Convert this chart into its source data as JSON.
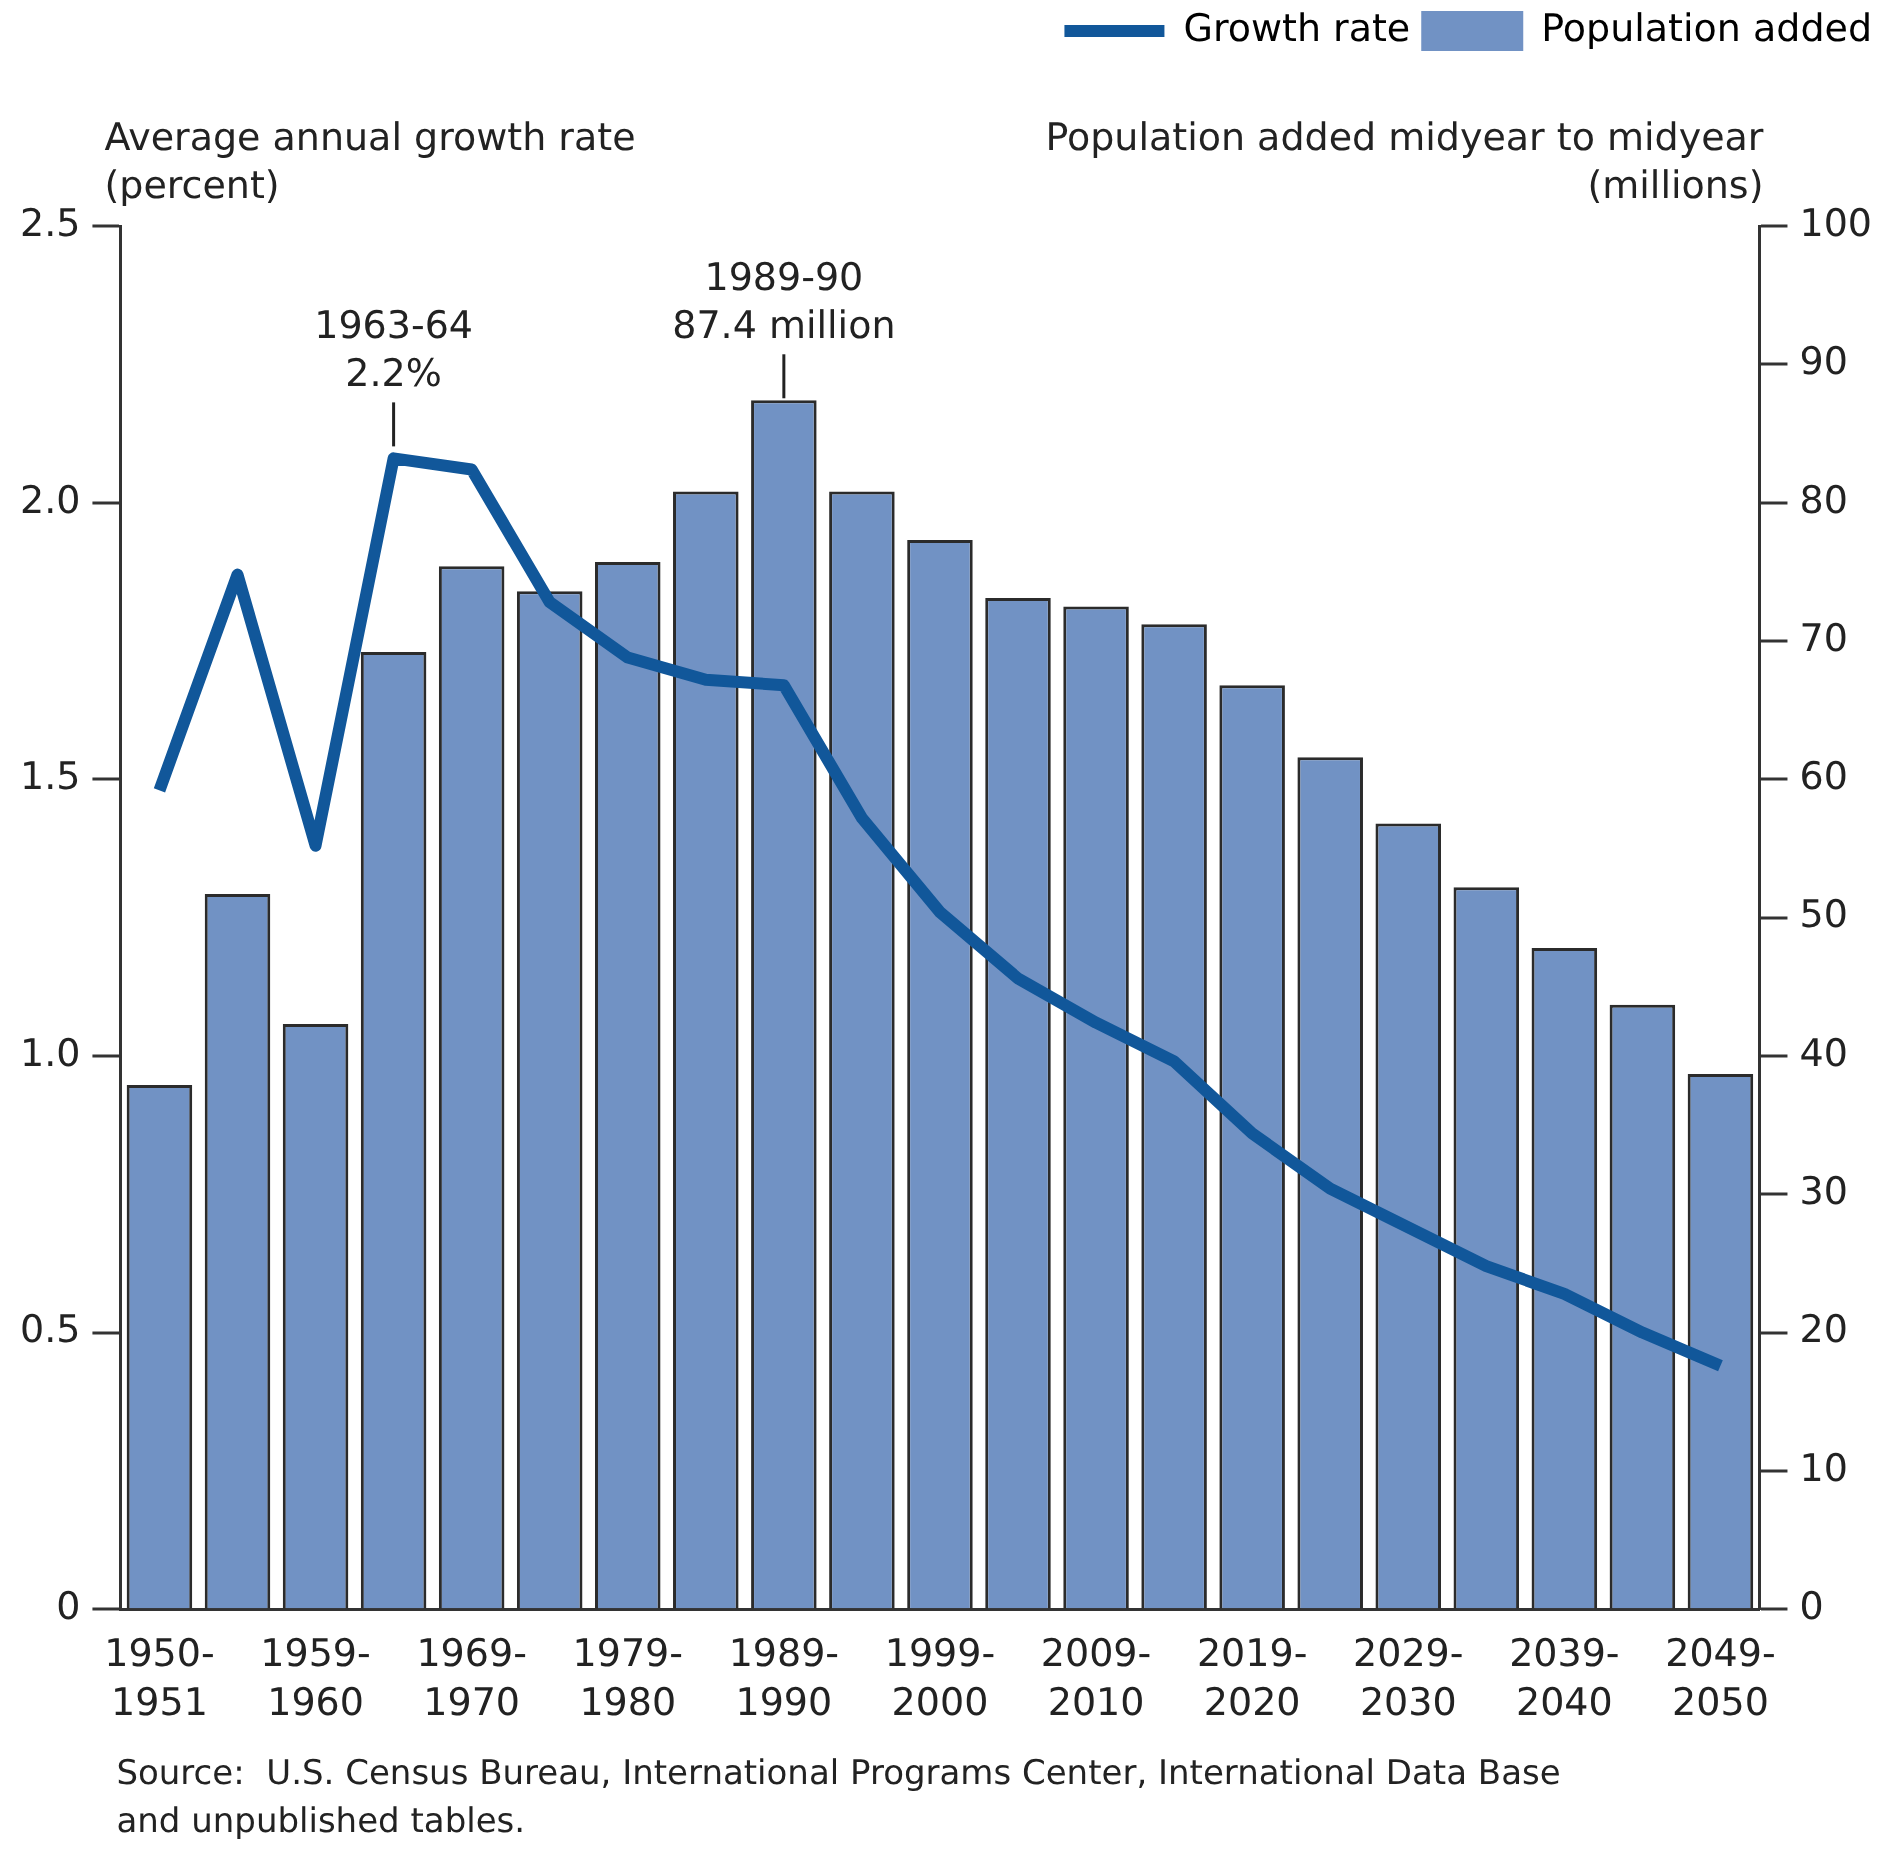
{
  "chart_data": {
    "type": "bar",
    "ylabel": "Average annual growth rate\n(percent)",
    "y2label": "Population added midyear to midyear\n(millions)",
    "categories": [
      "1950-1951",
      null,
      "1959-1960",
      null,
      "1969-1970",
      null,
      "1979-1980",
      null,
      "1989-1990",
      null,
      "1999-2000",
      null,
      "2009-2010",
      null,
      "2019-2020",
      null,
      "2029-2030",
      null,
      "2039-2040",
      null,
      "2049-2050"
    ],
    "series": [
      {
        "name": "Growth rate",
        "type": "line",
        "color": "#11579a",
        "values": [
          1.48,
          1.87,
          1.38,
          2.08,
          2.06,
          1.82,
          1.72,
          1.68,
          1.67,
          1.43,
          1.26,
          1.14,
          1.06,
          0.99,
          0.86,
          0.76,
          0.69,
          0.62,
          0.57,
          0.5,
          0.44
        ]
      },
      {
        "name": "Population added",
        "axis": "y2",
        "color": "#7192c4",
        "values": [
          37.9,
          51.7,
          42.3,
          69.2,
          75.4,
          73.6,
          75.7,
          80.8,
          87.4,
          80.8,
          77.3,
          73.1,
          72.5,
          71.2,
          66.8,
          61.6,
          56.8,
          52.2,
          47.8,
          43.7,
          38.7
        ]
      }
    ],
    "ylim": [
      0,
      2.5
    ],
    "yticks": [
      0,
      {
        "value": 0.5,
        "label": "0.5"
      },
      {
        "value": 1,
        "label": "1.0"
      },
      {
        "value": 1.5,
        "label": "1.5"
      },
      {
        "value": 2,
        "label": "2.0"
      },
      {
        "value": 2.5,
        "label": "2.5"
      }
    ],
    "y2lim": [
      0,
      100
    ],
    "y2ticks": [
      0,
      10,
      20,
      30,
      40,
      50,
      60,
      70,
      80,
      90,
      100
    ],
    "annotations": [
      "1963-64\n2.2%",
      "1989-90\n87.4 million",
      "Source:  U.S. Census Bureau, International Programs Center, International Data Base\nand unpublished tables."
    ],
    "legend": "top right",
    "grid": false,
    "marker": "none",
    "line_style": "solid"
  }
}
